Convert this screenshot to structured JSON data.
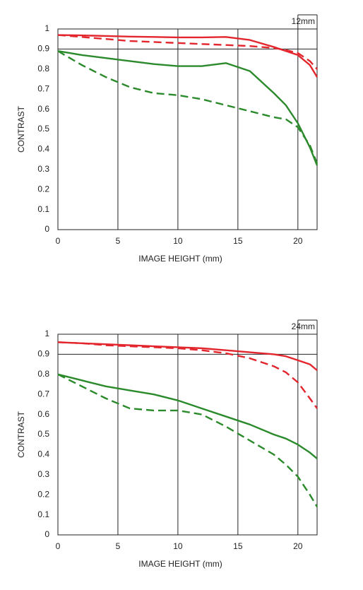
{
  "chart_data": [
    {
      "type": "line",
      "label": "12mm",
      "xlabel": "IMAGE HEIGHT (mm)",
      "ylabel": "CONTRAST",
      "xlim": [
        0,
        21.6
      ],
      "ylim": [
        0,
        1
      ],
      "xticks": [
        0,
        5,
        10,
        15,
        20
      ],
      "yticks": [
        0,
        0.1,
        0.2,
        0.3,
        0.4,
        0.5,
        0.6,
        0.7,
        0.8,
        0.9,
        1
      ],
      "ygrid": [
        0.9
      ],
      "x": [
        0,
        2,
        4,
        6,
        8,
        10,
        12,
        14,
        16,
        18,
        19,
        20,
        21,
        21.6
      ],
      "series": [
        {
          "color": "#e3262d",
          "dash": false,
          "values": [
            0.97,
            0.968,
            0.965,
            0.962,
            0.96,
            0.958,
            0.958,
            0.96,
            0.945,
            0.91,
            0.89,
            0.87,
            0.82,
            0.76
          ]
        },
        {
          "color": "#e3262d",
          "dash": true,
          "values": [
            0.97,
            0.96,
            0.95,
            0.94,
            0.935,
            0.93,
            0.925,
            0.92,
            0.915,
            0.905,
            0.895,
            0.88,
            0.84,
            0.8
          ]
        },
        {
          "color": "#2b8a2b",
          "dash": false,
          "values": [
            0.89,
            0.87,
            0.855,
            0.84,
            0.825,
            0.815,
            0.815,
            0.83,
            0.79,
            0.68,
            0.62,
            0.53,
            0.41,
            0.32
          ]
        },
        {
          "color": "#2b8a2b",
          "dash": true,
          "values": [
            0.89,
            0.82,
            0.76,
            0.71,
            0.68,
            0.67,
            0.65,
            0.62,
            0.59,
            0.56,
            0.55,
            0.51,
            0.42,
            0.33
          ]
        }
      ]
    },
    {
      "type": "line",
      "label": "24mm",
      "xlabel": "IMAGE HEIGHT (mm)",
      "ylabel": "CONTRAST",
      "xlim": [
        0,
        21.6
      ],
      "ylim": [
        0,
        1
      ],
      "xticks": [
        0,
        5,
        10,
        15,
        20
      ],
      "yticks": [
        0,
        0.1,
        0.2,
        0.3,
        0.4,
        0.5,
        0.6,
        0.7,
        0.8,
        0.9,
        1
      ],
      "ygrid": [
        0.9
      ],
      "x": [
        0,
        2,
        4,
        6,
        8,
        10,
        12,
        14,
        16,
        18,
        19,
        20,
        21,
        21.6
      ],
      "series": [
        {
          "color": "#e3262d",
          "dash": false,
          "values": [
            0.96,
            0.955,
            0.95,
            0.945,
            0.94,
            0.935,
            0.93,
            0.92,
            0.91,
            0.9,
            0.89,
            0.87,
            0.85,
            0.82
          ]
        },
        {
          "color": "#e3262d",
          "dash": true,
          "values": [
            0.96,
            0.955,
            0.945,
            0.94,
            0.935,
            0.93,
            0.92,
            0.905,
            0.88,
            0.84,
            0.81,
            0.76,
            0.68,
            0.63
          ]
        },
        {
          "color": "#2b8a2b",
          "dash": false,
          "values": [
            0.8,
            0.77,
            0.74,
            0.72,
            0.7,
            0.67,
            0.63,
            0.59,
            0.55,
            0.5,
            0.48,
            0.45,
            0.41,
            0.38
          ]
        },
        {
          "color": "#2b8a2b",
          "dash": true,
          "values": [
            0.8,
            0.74,
            0.68,
            0.63,
            0.62,
            0.62,
            0.6,
            0.54,
            0.47,
            0.4,
            0.35,
            0.29,
            0.2,
            0.14
          ]
        }
      ]
    }
  ]
}
